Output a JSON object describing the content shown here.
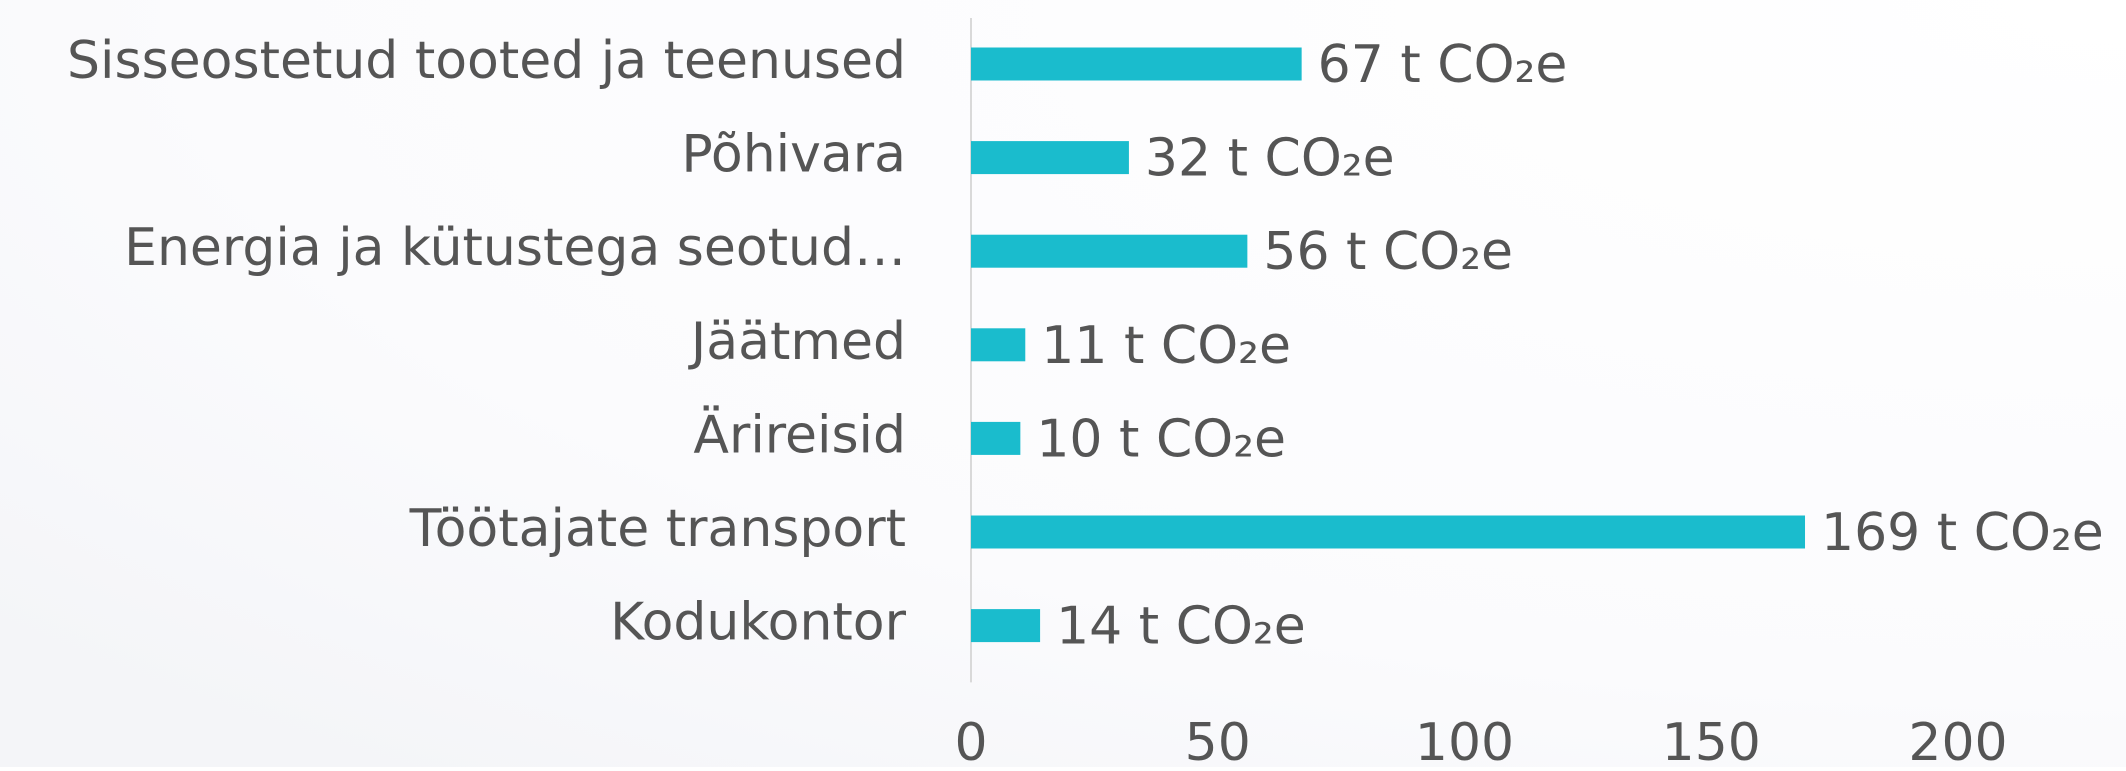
{
  "chart_data": {
    "type": "hbar",
    "categories": [
      "Sisseostetud tooted ja teenused",
      "Põhivara",
      "Energia ja kütustega seotud…",
      "Jäätmed",
      "Ärireisid",
      "Töötajate transport",
      "Kodukontor"
    ],
    "values": [
      67,
      32,
      56,
      11,
      10,
      169,
      14
    ],
    "value_labels": [
      "67 t CO₂e",
      "32 t CO₂e",
      "56 t CO₂e",
      "11 t CO₂e",
      "10 t CO₂e",
      "169 t CO₂e",
      "14 t CO₂e"
    ],
    "color": "#1abccd",
    "xlim": [
      0,
      200
    ],
    "xticks": [
      0,
      50,
      100,
      150,
      200
    ],
    "grid": false
  }
}
